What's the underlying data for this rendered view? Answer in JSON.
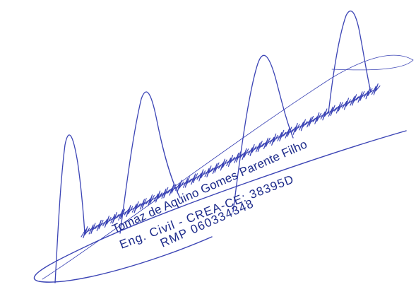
{
  "stamp": {
    "name": "Tomaz de Aquino Gomes Parente Filho",
    "registration": "Eng. Civil - CREA-CE: 38395D",
    "rmp": "RMP 060334348"
  }
}
